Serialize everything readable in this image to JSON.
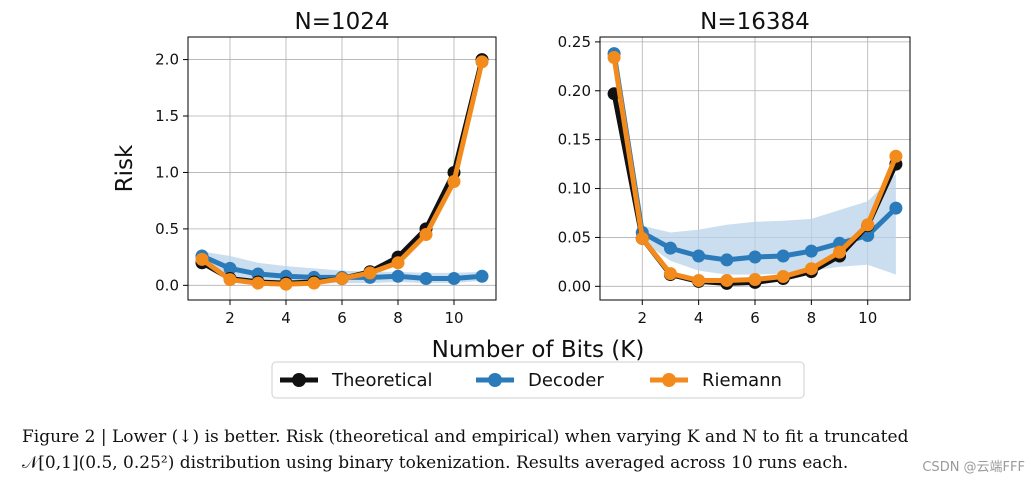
{
  "colors": {
    "theoretical": "#111111",
    "decoder": "#2b7bba",
    "riemann": "#f28a1c",
    "band": "#b9d3ea",
    "grid": "#b0b0b0"
  },
  "chart_data": [
    {
      "type": "line",
      "title": "N=1024",
      "ylabel": "Risk",
      "xlabel": "Number of Bits (K)",
      "x": [
        1,
        2,
        3,
        4,
        5,
        6,
        7,
        8,
        9,
        10,
        11
      ],
      "xlim": [
        0.5,
        11.5
      ],
      "ylim": [
        -0.13,
        2.2
      ],
      "xticks": [
        2,
        4,
        6,
        8,
        10
      ],
      "yticks": [
        0.0,
        0.5,
        1.0,
        1.5,
        2.0
      ],
      "ytick_labels": [
        "0.0",
        "0.5",
        "1.0",
        "1.5",
        "2.0"
      ],
      "grid": true,
      "series": [
        {
          "name": "Decoder",
          "color_key": "decoder",
          "values": [
            0.26,
            0.15,
            0.1,
            0.08,
            0.07,
            0.07,
            0.07,
            0.08,
            0.06,
            0.06,
            0.08
          ],
          "band_upper": [
            0.3,
            0.26,
            0.2,
            0.17,
            0.15,
            0.13,
            0.12,
            0.12,
            0.11,
            0.11,
            0.12
          ],
          "band_lower": [
            0.22,
            0.08,
            0.04,
            0.03,
            0.02,
            0.02,
            0.02,
            0.03,
            0.02,
            0.02,
            0.04
          ]
        },
        {
          "name": "Theoretical",
          "color_key": "theoretical",
          "values": [
            0.2,
            0.06,
            0.03,
            0.02,
            0.03,
            0.06,
            0.12,
            0.25,
            0.5,
            1.0,
            2.0
          ]
        },
        {
          "name": "Riemann",
          "color_key": "riemann",
          "values": [
            0.23,
            0.05,
            0.02,
            0.01,
            0.02,
            0.06,
            0.11,
            0.2,
            0.45,
            0.92,
            1.98
          ]
        }
      ]
    },
    {
      "type": "line",
      "title": "N=16384",
      "ylabel": "",
      "xlabel": "Number of Bits (K)",
      "x": [
        1,
        2,
        3,
        4,
        5,
        6,
        7,
        8,
        9,
        10,
        11
      ],
      "xlim": [
        0.5,
        11.5
      ],
      "ylim": [
        -0.014,
        0.255
      ],
      "xticks": [
        2,
        4,
        6,
        8,
        10
      ],
      "yticks": [
        0.0,
        0.05,
        0.1,
        0.15,
        0.2,
        0.25
      ],
      "ytick_labels": [
        "0.00",
        "0.05",
        "0.10",
        "0.15",
        "0.20",
        "0.25"
      ],
      "grid": true,
      "series": [
        {
          "name": "Decoder",
          "color_key": "decoder",
          "values": [
            0.238,
            0.055,
            0.039,
            0.031,
            0.027,
            0.03,
            0.031,
            0.036,
            0.044,
            0.052,
            0.08
          ],
          "band_upper": [
            0.242,
            0.062,
            0.055,
            0.058,
            0.063,
            0.066,
            0.067,
            0.069,
            0.078,
            0.087,
            0.115
          ],
          "band_lower": [
            0.232,
            0.046,
            0.026,
            0.016,
            0.012,
            0.012,
            0.013,
            0.016,
            0.02,
            0.022,
            0.012
          ]
        },
        {
          "name": "Theoretical",
          "color_key": "theoretical",
          "values": [
            0.197,
            0.049,
            0.012,
            0.005,
            0.003,
            0.004,
            0.008,
            0.015,
            0.031,
            0.062,
            0.125
          ]
        },
        {
          "name": "Riemann",
          "color_key": "riemann",
          "values": [
            0.234,
            0.049,
            0.013,
            0.006,
            0.006,
            0.007,
            0.01,
            0.018,
            0.035,
            0.063,
            0.133
          ]
        }
      ]
    }
  ],
  "legend": {
    "placement": "bottom-center",
    "entries": [
      {
        "label": "Theoretical",
        "color_key": "theoretical"
      },
      {
        "label": "Decoder",
        "color_key": "decoder"
      },
      {
        "label": "Riemann",
        "color_key": "riemann"
      }
    ]
  },
  "caption": {
    "line1": "Figure 2 | Lower (↓) is better. Risk (theoretical and empirical) when varying K and N to fit a truncated",
    "line2": "𝒩[0,1](0.5, 0.25²) distribution using binary tokenization. Results averaged across 10 runs each."
  },
  "watermark": "CSDN @云端FFF"
}
